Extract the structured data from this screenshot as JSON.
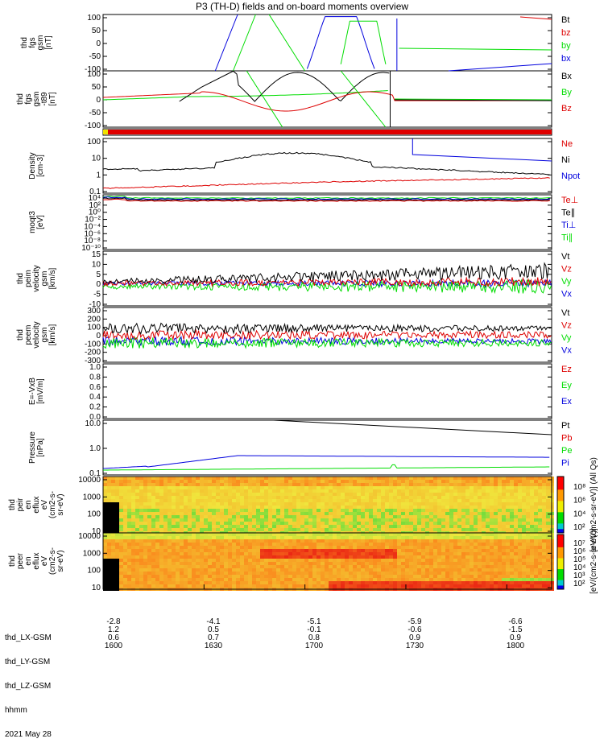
{
  "title": "P3 (TH-D) fields and on-board moments overview",
  "footer": {
    "row_labels": [
      "thd_LX-GSM",
      "thd_LY-GSM",
      "thd_LZ-GSM",
      "hhmm"
    ],
    "date": "2021 May 28",
    "columns": [
      {
        "vals": [
          "-2.8",
          "1.2",
          "0.6",
          "1600"
        ]
      },
      {
        "vals": [
          "-4.1",
          "0.5",
          "0.7",
          "1630"
        ]
      },
      {
        "vals": [
          "-5.1",
          "-0.1",
          "0.8",
          "1700"
        ]
      },
      {
        "vals": [
          "-5.9",
          "-0.6",
          "0.9",
          "1730"
        ]
      },
      {
        "vals": [
          "-6.6",
          "-1.5",
          "0.9",
          "1800"
        ]
      }
    ]
  },
  "colors": {
    "black": "#000000",
    "red": "#dd0000",
    "green": "#00dd00",
    "blue": "#0000dd"
  },
  "chart_data": [
    {
      "type": "line",
      "ylabel": [
        "thd",
        "fgs",
        "gsm",
        "[nT]"
      ],
      "ylim": [
        -100,
        100
      ],
      "yticks": [
        "100",
        "50",
        "0",
        "-50",
        "-100"
      ],
      "legend": [
        {
          "name": "Bt",
          "color": "black"
        },
        {
          "name": "bz",
          "color": "red"
        },
        {
          "name": "by",
          "color": "green"
        },
        {
          "name": "bx",
          "color": "blue"
        }
      ]
    },
    {
      "type": "line",
      "ylabel": [
        "thd",
        "fgs",
        "gsm",
        "-t89",
        "[nT]"
      ],
      "ylim": [
        -120,
        100
      ],
      "yticks": [
        "100",
        "50",
        "0",
        "-50",
        "-100"
      ],
      "legend": [
        {
          "name": "Bx",
          "color": "black"
        },
        {
          "name": "By",
          "color": "green"
        },
        {
          "name": "Bz",
          "color": "red"
        }
      ]
    },
    {
      "type": "bar",
      "note": "mode bar"
    },
    {
      "type": "line",
      "scale": "log",
      "ylabel": [
        "Density",
        "[cm-3]"
      ],
      "yticks": [
        "100",
        "10",
        "1",
        "0.1"
      ],
      "legend": [
        {
          "name": "Ne",
          "color": "red"
        },
        {
          "name": "Ni",
          "color": "black"
        },
        {
          "name": "Npot",
          "color": "blue"
        }
      ]
    },
    {
      "type": "line",
      "scale": "log",
      "ylabel": [
        "moqt3",
        "[eV]"
      ],
      "yticks": [
        "10⁴",
        "10²",
        "10⁰",
        "10⁻²",
        "10⁻⁴",
        "10⁻⁶",
        "10⁻⁸",
        "10⁻¹⁰"
      ],
      "legend": [
        {
          "name": "Te⊥",
          "color": "red"
        },
        {
          "name": "Te∥",
          "color": "black"
        },
        {
          "name": "Ti⊥",
          "color": "blue"
        },
        {
          "name": "Ti∥",
          "color": "green"
        }
      ]
    },
    {
      "type": "line",
      "ylabel": [
        "thd",
        "peim",
        "velocity",
        "gsm",
        "[km/s]"
      ],
      "ylim": [
        -10,
        15
      ],
      "yticks": [
        "15",
        "10",
        "5",
        "0",
        "-5",
        "-10"
      ],
      "legend": [
        {
          "name": "Vt",
          "color": "black"
        },
        {
          "name": "Vz",
          "color": "red"
        },
        {
          "name": "Vy",
          "color": "green"
        },
        {
          "name": "Vx",
          "color": "blue"
        }
      ]
    },
    {
      "type": "line",
      "ylabel": [
        "thd",
        "peem",
        "velocity",
        "gsm",
        "[km/s]"
      ],
      "ylim": [
        -300,
        300
      ],
      "yticks": [
        "300",
        "200",
        "100",
        "0",
        "-100",
        "-200",
        "-300"
      ],
      "legend": [
        {
          "name": "Vt",
          "color": "black"
        },
        {
          "name": "Vz",
          "color": "red"
        },
        {
          "name": "Vy",
          "color": "green"
        },
        {
          "name": "Vx",
          "color": "blue"
        }
      ]
    },
    {
      "type": "line",
      "ylabel": [
        "E=-VxB",
        "[mV/m]"
      ],
      "ylim": [
        0,
        1
      ],
      "yticks": [
        "1.0",
        "0.8",
        "0.6",
        "0.4",
        "0.2",
        "0.0"
      ],
      "legend": [
        {
          "name": "Ez",
          "color": "red"
        },
        {
          "name": "Ey",
          "color": "green"
        },
        {
          "name": "Ex",
          "color": "blue"
        }
      ]
    },
    {
      "type": "line",
      "scale": "log",
      "ylabel": [
        "Pressure",
        "[nPa]"
      ],
      "yticks": [
        "10.0",
        "1.0",
        "0.1"
      ],
      "legend": [
        {
          "name": "Pt",
          "color": "black"
        },
        {
          "name": "Pb",
          "color": "red"
        },
        {
          "name": "Pe",
          "color": "green"
        },
        {
          "name": "Pi",
          "color": "blue"
        }
      ]
    },
    {
      "type": "heatmap",
      "ylabel": [
        "thd",
        "peir",
        "en",
        "eflux",
        "eV",
        "(cm2-s-",
        "sr-eV)"
      ],
      "yticks": [
        "10000",
        "1000",
        "100",
        "10"
      ],
      "cbar_ticks": [
        "10⁸",
        "10⁶",
        "10⁴",
        "10²"
      ],
      "cbar_label": "[eV/(cm2-s-sr-eV)] (All Qs)"
    },
    {
      "type": "heatmap",
      "ylabel": [
        "thd",
        "peer",
        "en",
        "eflux",
        "eV",
        "(cm2-s-",
        "sr-eV)"
      ],
      "yticks": [
        "10000",
        "1000",
        "100",
        "10"
      ],
      "cbar_ticks": [
        "10⁷",
        "10⁶",
        "10⁵",
        "10⁴",
        "10³",
        "10²"
      ],
      "cbar_label": "[eV/(cm2-s-sr-eV)]"
    }
  ]
}
